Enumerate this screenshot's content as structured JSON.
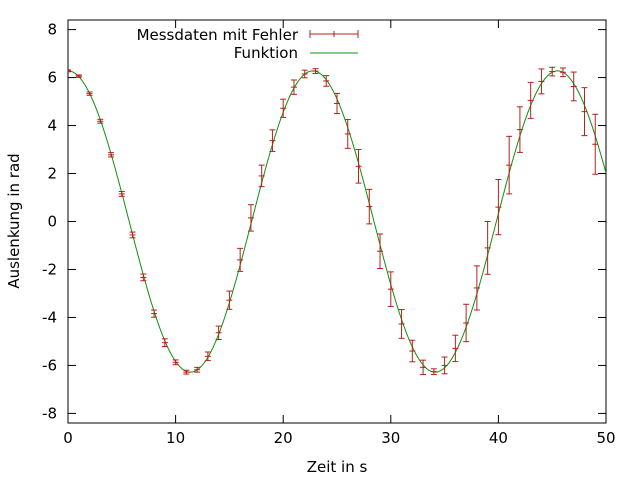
{
  "chart_data": {
    "type": "scatter",
    "xlabel": "Zeit in s",
    "ylabel": "Auslenkung in rad",
    "xlim": [
      0,
      50
    ],
    "ylim": [
      -8.4,
      8.4
    ],
    "x_ticks": [
      0,
      10,
      20,
      30,
      40,
      50
    ],
    "y_ticks": [
      -8,
      -6,
      -4,
      -2,
      0,
      2,
      4,
      6,
      8
    ],
    "grid": false,
    "legend_position": "top-center",
    "series": [
      {
        "name": "Messdaten mit Fehler",
        "color": "#b3221d",
        "kind": "points-with-errorbars",
        "x": [
          0,
          1,
          2,
          3,
          4,
          5,
          6,
          7,
          8,
          9,
          10,
          11,
          12,
          13,
          14,
          15,
          16,
          17,
          18,
          19,
          20,
          21,
          22,
          23,
          24,
          25,
          26,
          27,
          28,
          29,
          30,
          31,
          32,
          33,
          34,
          35,
          36,
          37,
          38,
          39,
          40,
          41,
          42,
          43,
          44,
          45,
          46,
          47,
          48,
          49
        ],
        "y": [
          6.28,
          6.06,
          5.33,
          4.18,
          2.78,
          1.15,
          -0.56,
          -2.33,
          -3.84,
          -5.05,
          -5.87,
          -6.28,
          -6.18,
          -5.62,
          -4.64,
          -3.28,
          -1.6,
          0.15,
          1.9,
          3.37,
          4.72,
          5.6,
          6.15,
          6.27,
          5.86,
          4.92,
          3.65,
          2.3,
          0.62,
          -1.24,
          -2.82,
          -4.27,
          -5.4,
          -6.08,
          -6.26,
          -6.0,
          -5.29,
          -4.23,
          -2.77,
          -1.1,
          0.6,
          2.35,
          3.83,
          5.05,
          5.84,
          6.25,
          6.22,
          5.63,
          4.58,
          3.22
        ],
        "yerr": [
          0.04,
          0.05,
          0.07,
          0.08,
          0.09,
          0.1,
          0.12,
          0.14,
          0.15,
          0.16,
          0.1,
          0.08,
          0.1,
          0.18,
          0.28,
          0.38,
          0.48,
          0.55,
          0.45,
          0.45,
          0.38,
          0.3,
          0.16,
          0.1,
          0.22,
          0.42,
          0.6,
          0.7,
          0.72,
          0.72,
          0.72,
          0.6,
          0.45,
          0.3,
          0.12,
          0.35,
          0.55,
          0.78,
          0.92,
          1.1,
          1.15,
          1.2,
          0.95,
          0.75,
          0.52,
          0.18,
          0.18,
          0.6,
          1.0,
          1.25
        ]
      },
      {
        "name": "Funktion",
        "color": "#109010",
        "kind": "line",
        "function": {
          "amplitude": 6.28,
          "period": 22.75,
          "phase": 0
        }
      }
    ]
  }
}
